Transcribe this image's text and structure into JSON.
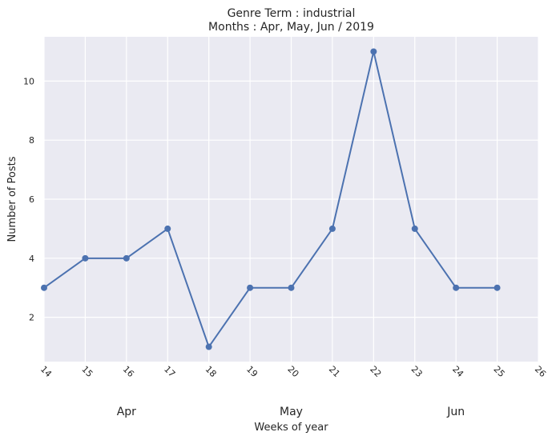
{
  "chart_data": {
    "type": "line",
    "title": [
      "Genre Term : industrial",
      "Months : Apr, May, Jun / 2019"
    ],
    "xlabel": "Weeks of year",
    "ylabel": "Number of Posts",
    "x": [
      14,
      15,
      16,
      17,
      18,
      19,
      20,
      21,
      22,
      23,
      24,
      25
    ],
    "series": [
      {
        "values": [
          3,
          4,
          4,
          5,
          1,
          3,
          3,
          5,
          11,
          5,
          3,
          3
        ]
      }
    ],
    "xlim": [
      14,
      26
    ],
    "ylim": [
      0.5,
      11.5
    ],
    "xticks": [
      14,
      15,
      16,
      17,
      18,
      19,
      20,
      21,
      22,
      23,
      24,
      25,
      26
    ],
    "yticks": [
      2,
      4,
      6,
      8,
      10
    ],
    "month_labels": [
      {
        "label": "Apr",
        "x": 16
      },
      {
        "label": "May",
        "x": 20
      },
      {
        "label": "Jun",
        "x": 24
      }
    ],
    "grid": true,
    "colors": {
      "line": "#4c72b0",
      "background": "#eaeaf2",
      "grid": "#ffffff"
    }
  }
}
